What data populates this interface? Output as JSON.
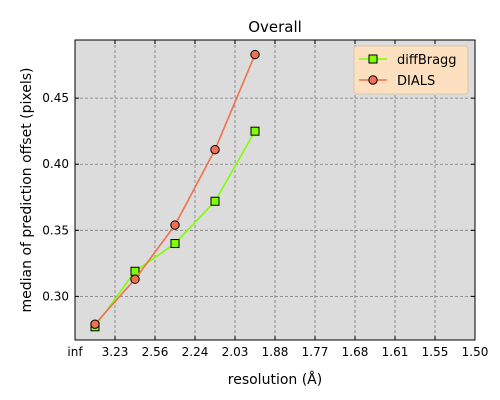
{
  "chart_data": {
    "type": "line",
    "title": "Overall",
    "xlabel": "resolution (Å)",
    "ylabel": "median of prediction offset (pixels)",
    "x_tick_labels": [
      "inf",
      "3.23",
      "2.56",
      "2.24",
      "2.03",
      "1.88",
      "1.77",
      "1.68",
      "1.61",
      "1.55",
      "1.50"
    ],
    "x_tick_positions_index": [
      0,
      1,
      2,
      3,
      4,
      5,
      6,
      7,
      8,
      9,
      10
    ],
    "xlim_index": [
      0,
      10
    ],
    "ylim": [
      0.267,
      0.494
    ],
    "y_ticks": [
      0.3,
      0.35,
      0.4,
      0.45
    ],
    "y_tick_labels": [
      "0.30",
      "0.35",
      "0.40",
      "0.45"
    ],
    "grid": true,
    "legend_position": "top-right",
    "series": [
      {
        "name": "diffBragg",
        "color": "#7fff00",
        "marker": "square",
        "x_index": [
          0.5,
          1.5,
          2.5,
          3.5,
          4.5
        ],
        "values": [
          0.277,
          0.319,
          0.34,
          0.372,
          0.425
        ]
      },
      {
        "name": "DIALS",
        "color": "#f07050",
        "marker": "circle",
        "x_index": [
          0.5,
          1.5,
          2.5,
          3.5,
          4.5
        ],
        "values": [
          0.279,
          0.313,
          0.354,
          0.411,
          0.483
        ]
      }
    ]
  }
}
